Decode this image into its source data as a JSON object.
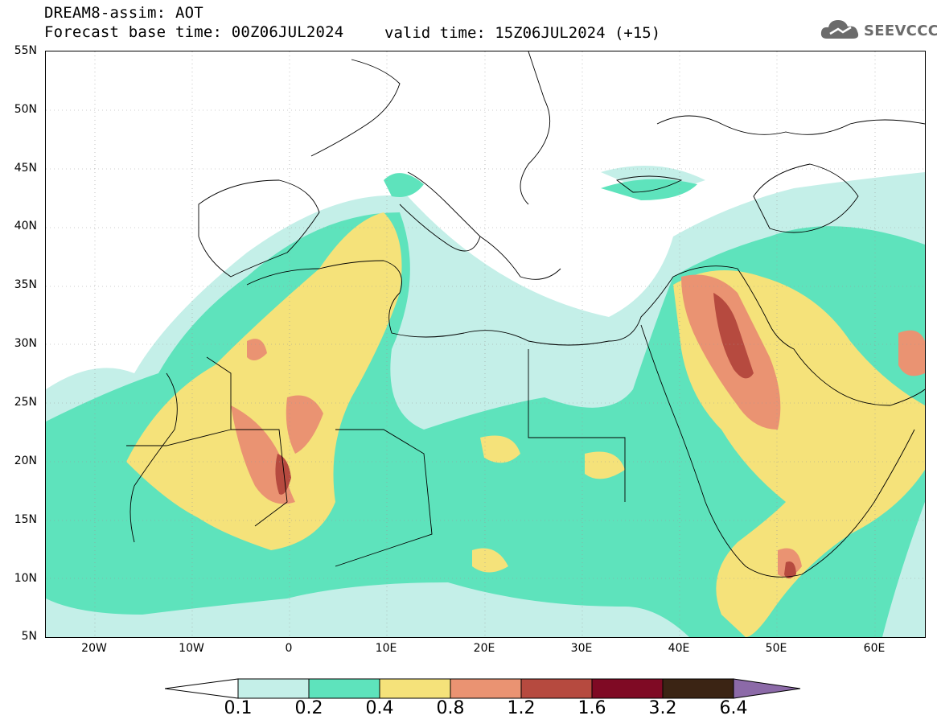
{
  "header": {
    "model_line": "DREAM8-assim: AOT",
    "base_time": "Forecast base time: 00Z06JUL2024",
    "valid_time": "valid time: 15Z06JUL2024 (+15)"
  },
  "logo": {
    "text": "SEEVCCC",
    "icon": "cloud-icon"
  },
  "map": {
    "region": "North Africa, Mediterranean, Middle East",
    "lat_ticks": [
      "55N",
      "50N",
      "45N",
      "40N",
      "35N",
      "30N",
      "25N",
      "20N",
      "15N",
      "10N",
      "5N"
    ],
    "lon_ticks": [
      "20W",
      "10W",
      "0",
      "10E",
      "20E",
      "30E",
      "40E",
      "50E",
      "60E"
    ],
    "lat_range": [
      5,
      55
    ],
    "lon_range": [
      -25,
      65
    ],
    "gridlines": true
  },
  "colorbar": {
    "labels": [
      "0.1",
      "0.2",
      "0.4",
      "0.8",
      "1.2",
      "1.6",
      "3.2",
      "6.4"
    ],
    "colors": [
      "#c4efe8",
      "#5ee3bc",
      "#f5e27a",
      "#ea9372",
      "#b64a3f",
      "#7f0a24",
      "#3b2414",
      "#8c6aa8"
    ]
  },
  "palette": {
    "white_low": "#ffffff",
    "c1": "#c4efe8",
    "c2": "#5ee3bc",
    "c3": "#f5e27a",
    "c4": "#ea9372",
    "c5": "#b64a3f"
  }
}
